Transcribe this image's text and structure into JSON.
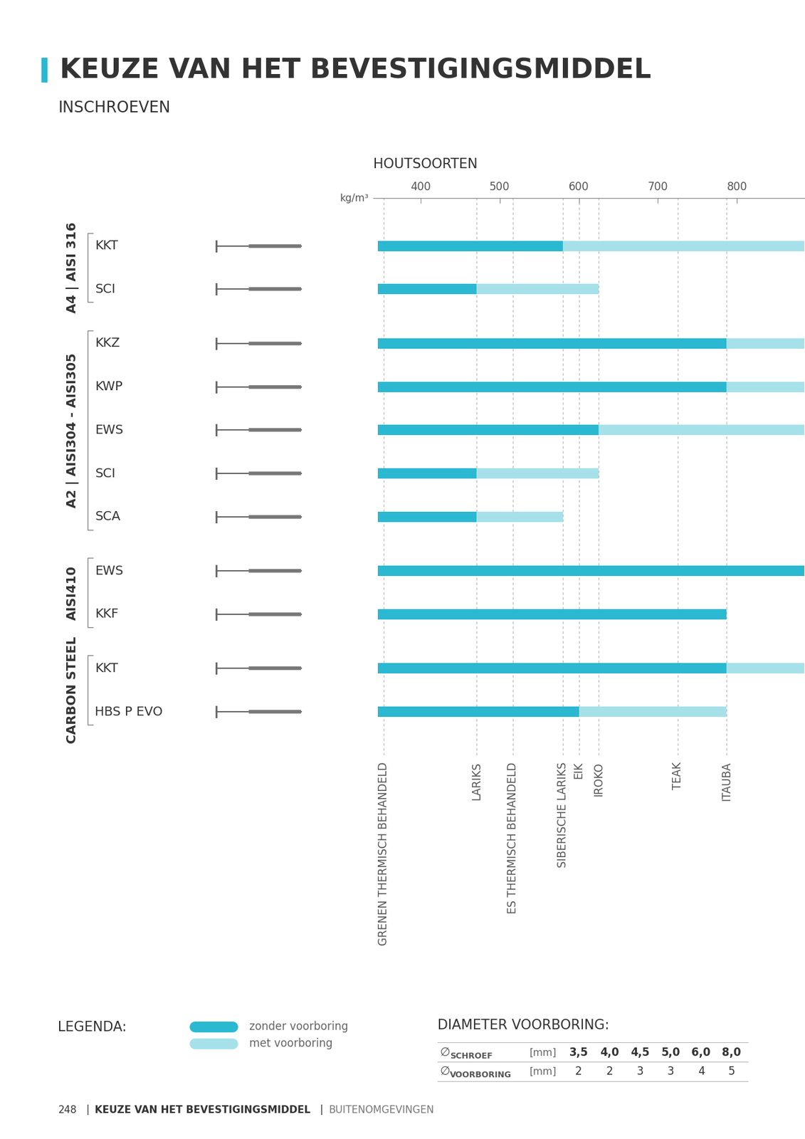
{
  "header": {
    "title": "KEUZE VAN HET BEVESTIGINGSMIDDEL",
    "subtitle": "INSCHROEVEN"
  },
  "chart_data": {
    "type": "bar",
    "orientation": "horizontal",
    "grid": false,
    "tick_labels": "x",
    "axis_title": "HOUTSOORTEN",
    "xlabel": "kg/m³",
    "xlim": [
      340,
      885
    ],
    "xticks": [
      400,
      500,
      600,
      700,
      800
    ],
    "groups": [
      {
        "name": "A4 | AISI 316",
        "categories": [
          "KKT",
          "SCI"
        ]
      },
      {
        "name": "A2 | AISI304 - AISI305",
        "categories": [
          "KKZ",
          "KWP",
          "EWS",
          "SCI",
          "SCA"
        ]
      },
      {
        "name": "AISI410",
        "categories": [
          "EWS",
          "KKF"
        ]
      },
      {
        "name": "CARBON STEEL",
        "categories": [
          "KKT",
          "HBS P EVO"
        ]
      }
    ],
    "series": [
      {
        "name": "zonder voorboring",
        "color": "#2bb8d1",
        "starts": [
          346,
          346,
          346,
          346,
          346,
          346,
          346,
          346,
          346,
          346,
          346
        ],
        "values": [
          580,
          471,
          787,
          787,
          625,
          471,
          471,
          885,
          787,
          787,
          600
        ]
      },
      {
        "name": "met voorboring",
        "color": "#a6e1ea",
        "starts": [
          580,
          471,
          787,
          787,
          625,
          471,
          471,
          null,
          null,
          787,
          600
        ],
        "values": [
          885,
          625,
          885,
          885,
          885,
          625,
          580,
          null,
          null,
          885,
          787
        ]
      }
    ],
    "wood_species": [
      {
        "name": "GRENEN THERMISCH BEHANDELD",
        "density": 353
      },
      {
        "name": "LARIKS",
        "density": 471
      },
      {
        "name": "ES THERMISCH BEHANDELD",
        "density": 517
      },
      {
        "name": "SIBERISCHE LARIKS",
        "density": 580
      },
      {
        "name": "EIK",
        "density": 600
      },
      {
        "name": "IROKO",
        "density": 625
      },
      {
        "name": "TEAK",
        "density": 725
      },
      {
        "name": "ITAUBA",
        "density": 787
      }
    ],
    "legend_title": "LEGENDA:"
  },
  "drill_table": {
    "title": "DIAMETER VOORBORING:",
    "symbol": "∅",
    "rows": [
      {
        "label": "SCHROEF",
        "unit": "[mm]",
        "values": [
          "3,5",
          "4,0",
          "4,5",
          "5,0",
          "6,0",
          "8,0"
        ]
      },
      {
        "label": "VOORBORING",
        "unit": "[mm]",
        "values": [
          2,
          2,
          3,
          3,
          4,
          5
        ]
      }
    ]
  },
  "footer": {
    "page": "248",
    "separator": "|",
    "section": "KEUZE VAN HET BEVESTIGINGSMIDDEL",
    "chapter": "BUITENOMGEVINGEN"
  }
}
